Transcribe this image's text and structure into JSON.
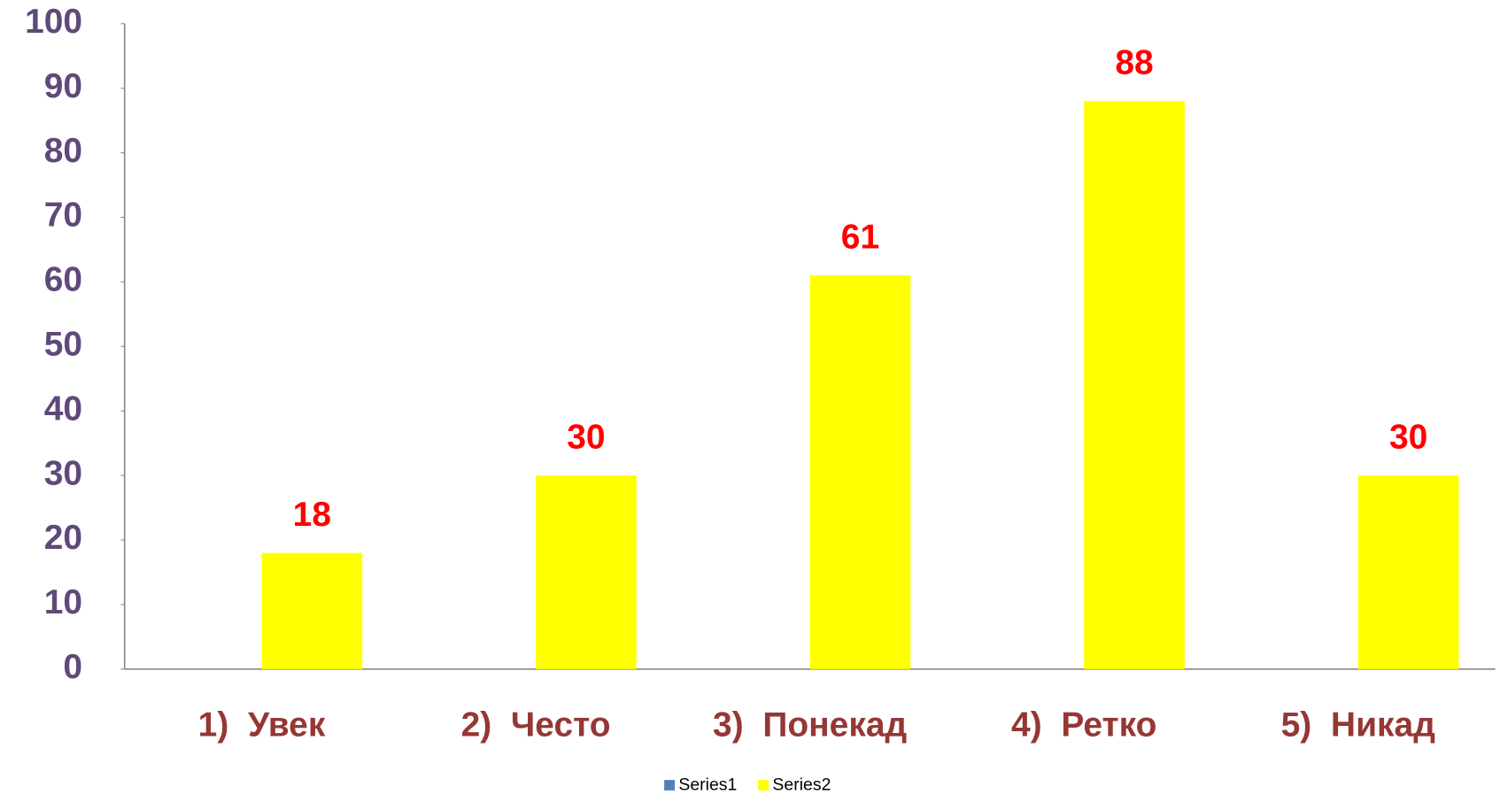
{
  "chart_data": {
    "type": "bar",
    "categories": [
      "1)  Увек",
      "2)  Често",
      "3)  Понекад",
      "4)  Ретко",
      "5)  Никад"
    ],
    "series": [
      {
        "name": "Series1",
        "color": "#4f81bd",
        "values": [
          null,
          null,
          null,
          null,
          null
        ]
      },
      {
        "name": "Series2",
        "color": "#ffff00",
        "values": [
          18,
          30,
          61,
          88,
          30
        ]
      }
    ],
    "ylim": [
      0,
      100
    ],
    "yticks": [
      0,
      10,
      20,
      30,
      40,
      50,
      60,
      70,
      80,
      90,
      100
    ],
    "grid": false,
    "legend": "bottom",
    "data_labels": true
  }
}
